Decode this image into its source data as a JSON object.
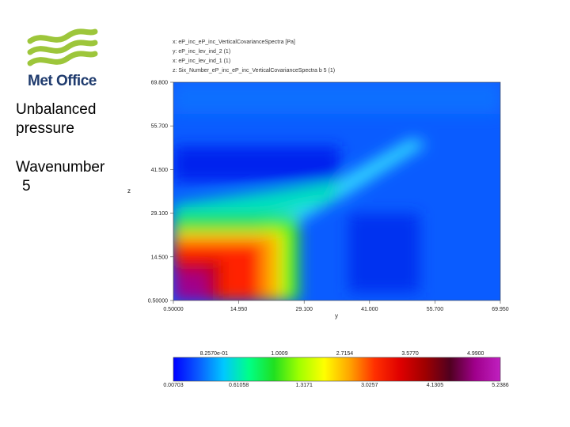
{
  "branding": {
    "logo_text": "Met Office",
    "logo_color": "#9dc63b"
  },
  "side": {
    "title_line1": "Unbalanced",
    "title_line2": "pressure",
    "wave_line1": "Wavenumber",
    "wave_line2": "5"
  },
  "header_lines": [
    "x: eP_inc_eP_inc_VerticalCovarianceSpectra [Pa]",
    "y: eP_inc_lev_ind_2 (1)",
    "x: eP_inc_lev_ind_1 (1)",
    "z: Six_Number_eP_inc_eP_inc_VerticalCovarianceSpectra b 5 (1)"
  ],
  "chart_data": {
    "type": "heatmap",
    "xlabel": "y",
    "ylabel": "z",
    "x_ticks": [
      "0.50000",
      "14.950",
      "29.100",
      "41.000",
      "55.700",
      "69.950"
    ],
    "y_ticks": [
      "0.50000",
      "14.500",
      "29.100",
      "41.500",
      "55.700",
      "69.800"
    ],
    "xlim": [
      0.5,
      69.95
    ],
    "ylim": [
      0.5,
      69.8
    ],
    "colorbar": {
      "top_labels": [
        "8.2570e-01",
        "1.0009",
        "2.7154",
        "3.5770",
        "4.9900"
      ],
      "bottom_labels": [
        "0.00703",
        "0.61058",
        "1.3171",
        "3.0257",
        "4.1305",
        "5.2386"
      ],
      "colors": [
        "#0000ff",
        "#0a5cff",
        "#00c8ff",
        "#00ff88",
        "#20e020",
        "#a0ff00",
        "#ffff00",
        "#ffa500",
        "#ff3000",
        "#e00000",
        "#a00000",
        "#500020",
        "#a0008c",
        "#c020c0"
      ]
    },
    "grid": false
  }
}
